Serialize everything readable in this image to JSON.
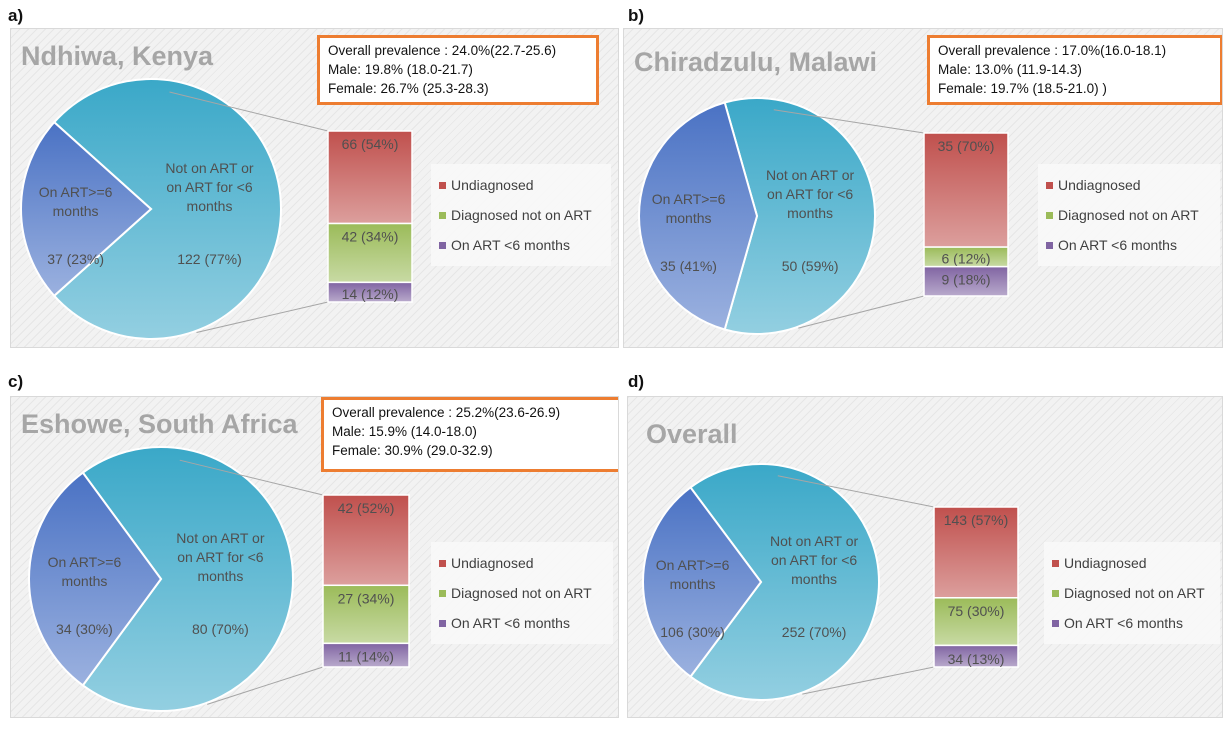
{
  "colors": {
    "on_art": "#4a72c4",
    "not_on_art": "#3aa8c8",
    "undiagnosed": "#c0504d",
    "diagnosed_not_on_art": "#9bbb59",
    "on_art_lt6": "#8064a2",
    "box_border": "#ed7d31"
  },
  "legend_labels": [
    "Undiagnosed",
    "Diagnosed not on ART",
    "On ART <6 months"
  ],
  "chart_data": [
    {
      "type": "pie",
      "letter": "a)",
      "title": "Ndhiwa, Kenya",
      "prevalence": [
        "Overall prevalence : 24.0%(22.7-25.6)",
        "Male: 19.8% (18.0-21.7)",
        "Female: 26.7% (25.3-28.3)"
      ],
      "pie": [
        {
          "label": "On ART>=6 months",
          "value": 37,
          "value_label": "37 (23%)"
        },
        {
          "label": "Not on ART or on ART for <6 months",
          "value": 122,
          "value_label": "122 (77%)"
        }
      ],
      "bar": [
        {
          "category": "Undiagnosed",
          "value": 66,
          "value_label": "66 (54%)"
        },
        {
          "category": "Diagnosed not on ART",
          "value": 42,
          "value_label": "42 (34%)"
        },
        {
          "category": "On ART <6 months",
          "value": 14,
          "value_label": "14 (12%)"
        }
      ]
    },
    {
      "type": "pie",
      "letter": "b)",
      "title": "Chiradzulu, Malawi",
      "prevalence": [
        "Overall prevalence : 17.0%(16.0-18.1)",
        "Male: 13.0% (11.9-14.3)",
        "Female: 19.7% (18.5-21.0) )"
      ],
      "pie": [
        {
          "label": "On ART>=6 months",
          "value": 35,
          "value_label": "35 (41%)"
        },
        {
          "label": "Not on ART or on ART for <6 months",
          "value": 50,
          "value_label": "50 (59%)"
        }
      ],
      "bar": [
        {
          "category": "Undiagnosed",
          "value": 35,
          "value_label": "35 (70%)"
        },
        {
          "category": "Diagnosed not on ART",
          "value": 6,
          "value_label": "6 (12%)"
        },
        {
          "category": "On ART <6 months",
          "value": 9,
          "value_label": "9 (18%)"
        }
      ]
    },
    {
      "type": "pie",
      "letter": "c)",
      "title": "Eshowe, South Africa",
      "prevalence": [
        "Overall prevalence : 25.2%(23.6-26.9)",
        "Male: 15.9% (14.0-18.0)",
        "Female: 30.9% (29.0-32.9)"
      ],
      "pie": [
        {
          "label": "On ART>=6 months",
          "value": 34,
          "value_label": "34 (30%)"
        },
        {
          "label": "Not on ART or on ART for <6 months",
          "value": 80,
          "value_label": "80 (70%)"
        }
      ],
      "bar": [
        {
          "category": "Undiagnosed",
          "value": 42,
          "value_label": "42 (52%)"
        },
        {
          "category": "Diagnosed not on ART",
          "value": 27,
          "value_label": "27 (34%)"
        },
        {
          "category": "On ART <6 months",
          "value": 11,
          "value_label": "11 (14%)"
        }
      ]
    },
    {
      "type": "pie",
      "letter": "d)",
      "title": "Overall",
      "prevalence": [],
      "pie": [
        {
          "label": "On ART>=6 months",
          "value": 106,
          "value_label": "106 (30%)"
        },
        {
          "label": "Not on ART or on ART for <6 months",
          "value": 252,
          "value_label": "252 (70%)"
        }
      ],
      "bar": [
        {
          "category": "Undiagnosed",
          "value": 143,
          "value_label": "143 (57%)"
        },
        {
          "category": "Diagnosed not on ART",
          "value": 75,
          "value_label": "75 (30%)"
        },
        {
          "category": "On ART <6 months",
          "value": 34,
          "value_label": "34 (13%)"
        }
      ]
    }
  ]
}
